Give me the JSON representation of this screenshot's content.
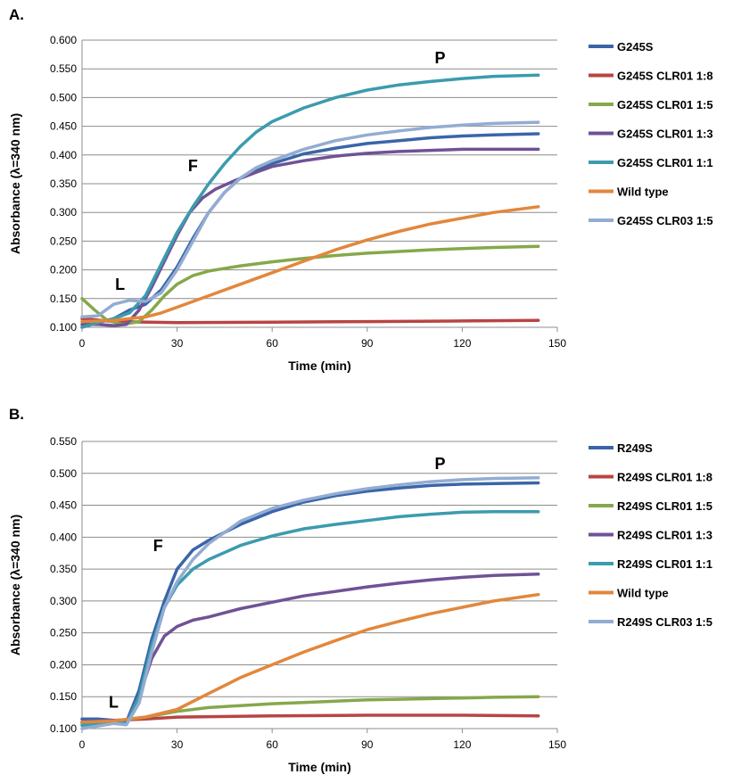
{
  "chart_data": [
    {
      "type": "line",
      "panel_label": "A.",
      "xlabel": "Time (min)",
      "ylabel": "Absorbance (λ=340 nm)",
      "xlim": [
        0,
        150
      ],
      "ylim": [
        0.1,
        0.6
      ],
      "x_ticks": [
        "0",
        "30",
        "60",
        "90",
        "120",
        "150"
      ],
      "y_ticks": [
        "0.100",
        "0.150",
        "0.200",
        "0.250",
        "0.300",
        "0.350",
        "0.400",
        "0.450",
        "0.500",
        "0.550",
        "0.600"
      ],
      "grid": true,
      "legend_position": "right",
      "annotations": [
        {
          "text": "L",
          "x": 12,
          "y": 0.165
        },
        {
          "text": "F",
          "x": 35,
          "y": 0.372
        },
        {
          "text": "P",
          "x": 113,
          "y": 0.56
        }
      ],
      "series": [
        {
          "name": "G245S",
          "color": "#3a65a8",
          "points": [
            [
              0,
              0.1
            ],
            [
              5,
              0.108
            ],
            [
              10,
              0.115
            ],
            [
              15,
              0.13
            ],
            [
              20,
              0.14
            ],
            [
              25,
              0.165
            ],
            [
              30,
              0.205
            ],
            [
              35,
              0.255
            ],
            [
              40,
              0.3
            ],
            [
              45,
              0.335
            ],
            [
              50,
              0.36
            ],
            [
              55,
              0.375
            ],
            [
              60,
              0.385
            ],
            [
              70,
              0.402
            ],
            [
              80,
              0.412
            ],
            [
              90,
              0.42
            ],
            [
              100,
              0.425
            ],
            [
              110,
              0.43
            ],
            [
              120,
              0.433
            ],
            [
              130,
              0.435
            ],
            [
              144,
              0.437
            ]
          ]
        },
        {
          "name": "G245S CLR01 1:8",
          "color": "#b84543",
          "points": [
            [
              0,
              0.115
            ],
            [
              10,
              0.11
            ],
            [
              30,
              0.108
            ],
            [
              60,
              0.109
            ],
            [
              90,
              0.11
            ],
            [
              120,
              0.111
            ],
            [
              144,
              0.112
            ]
          ]
        },
        {
          "name": "G245S CLR01 1:5",
          "color": "#86a84a",
          "points": [
            [
              0,
              0.15
            ],
            [
              4,
              0.13
            ],
            [
              8,
              0.112
            ],
            [
              13,
              0.105
            ],
            [
              18,
              0.11
            ],
            [
              22,
              0.13
            ],
            [
              26,
              0.155
            ],
            [
              30,
              0.175
            ],
            [
              35,
              0.19
            ],
            [
              40,
              0.198
            ],
            [
              50,
              0.207
            ],
            [
              60,
              0.214
            ],
            [
              70,
              0.22
            ],
            [
              80,
              0.225
            ],
            [
              90,
              0.229
            ],
            [
              100,
              0.232
            ],
            [
              110,
              0.235
            ],
            [
              120,
              0.237
            ],
            [
              130,
              0.239
            ],
            [
              144,
              0.241
            ]
          ]
        },
        {
          "name": "G245S CLR01 1:3",
          "color": "#6f5296",
          "points": [
            [
              0,
              0.105
            ],
            [
              5,
              0.105
            ],
            [
              10,
              0.103
            ],
            [
              14,
              0.105
            ],
            [
              18,
              0.13
            ],
            [
              22,
              0.17
            ],
            [
              26,
              0.215
            ],
            [
              30,
              0.26
            ],
            [
              34,
              0.3
            ],
            [
              38,
              0.325
            ],
            [
              42,
              0.34
            ],
            [
              48,
              0.355
            ],
            [
              55,
              0.37
            ],
            [
              60,
              0.38
            ],
            [
              70,
              0.39
            ],
            [
              80,
              0.398
            ],
            [
              90,
              0.403
            ],
            [
              100,
              0.406
            ],
            [
              110,
              0.408
            ],
            [
              120,
              0.41
            ],
            [
              130,
              0.41
            ],
            [
              144,
              0.41
            ]
          ]
        },
        {
          "name": "G245S CLR01 1:1",
          "color": "#3c9bae",
          "points": [
            [
              0,
              0.1
            ],
            [
              5,
              0.108
            ],
            [
              10,
              0.115
            ],
            [
              15,
              0.125
            ],
            [
              20,
              0.155
            ],
            [
              25,
              0.21
            ],
            [
              30,
              0.265
            ],
            [
              35,
              0.31
            ],
            [
              40,
              0.35
            ],
            [
              45,
              0.385
            ],
            [
              50,
              0.415
            ],
            [
              55,
              0.44
            ],
            [
              60,
              0.458
            ],
            [
              70,
              0.482
            ],
            [
              80,
              0.5
            ],
            [
              90,
              0.513
            ],
            [
              100,
              0.522
            ],
            [
              110,
              0.528
            ],
            [
              120,
              0.533
            ],
            [
              130,
              0.537
            ],
            [
              144,
              0.539
            ]
          ]
        },
        {
          "name": "Wild type",
          "color": "#e2873c",
          "points": [
            [
              0,
              0.11
            ],
            [
              10,
              0.112
            ],
            [
              20,
              0.118
            ],
            [
              25,
              0.125
            ],
            [
              30,
              0.135
            ],
            [
              40,
              0.155
            ],
            [
              50,
              0.175
            ],
            [
              60,
              0.195
            ],
            [
              70,
              0.215
            ],
            [
              80,
              0.235
            ],
            [
              90,
              0.252
            ],
            [
              100,
              0.267
            ],
            [
              110,
              0.28
            ],
            [
              120,
              0.29
            ],
            [
              130,
              0.3
            ],
            [
              144,
              0.31
            ]
          ]
        },
        {
          "name": "G245S CLR03 1:5",
          "color": "#93acd2",
          "points": [
            [
              0,
              0.118
            ],
            [
              5,
              0.12
            ],
            [
              10,
              0.14
            ],
            [
              15,
              0.147
            ],
            [
              20,
              0.145
            ],
            [
              25,
              0.16
            ],
            [
              30,
              0.2
            ],
            [
              35,
              0.25
            ],
            [
              40,
              0.3
            ],
            [
              45,
              0.335
            ],
            [
              50,
              0.36
            ],
            [
              55,
              0.378
            ],
            [
              60,
              0.39
            ],
            [
              70,
              0.41
            ],
            [
              80,
              0.425
            ],
            [
              90,
              0.435
            ],
            [
              100,
              0.442
            ],
            [
              110,
              0.448
            ],
            [
              120,
              0.452
            ],
            [
              130,
              0.455
            ],
            [
              144,
              0.457
            ]
          ]
        }
      ]
    },
    {
      "type": "line",
      "panel_label": "B.",
      "xlabel": "Time (min)",
      "ylabel": "Absorbance (λ=340 nm)",
      "xlim": [
        0,
        150
      ],
      "ylim": [
        0.1,
        0.55
      ],
      "x_ticks": [
        "0",
        "30",
        "60",
        "90",
        "120",
        "150"
      ],
      "y_ticks": [
        "0.100",
        "0.150",
        "0.200",
        "0.250",
        "0.300",
        "0.350",
        "0.400",
        "0.450",
        "0.500",
        "0.550"
      ],
      "grid": true,
      "legend_position": "right",
      "annotations": [
        {
          "text": "L",
          "x": 10,
          "y": 0.133
        },
        {
          "text": "F",
          "x": 24,
          "y": 0.378
        },
        {
          "text": "P",
          "x": 113,
          "y": 0.507
        }
      ],
      "series": [
        {
          "name": "R249S",
          "color": "#3a65a8",
          "points": [
            [
              0,
              0.115
            ],
            [
              5,
              0.115
            ],
            [
              10,
              0.113
            ],
            [
              14,
              0.11
            ],
            [
              18,
              0.16
            ],
            [
              22,
              0.24
            ],
            [
              26,
              0.3
            ],
            [
              30,
              0.35
            ],
            [
              35,
              0.38
            ],
            [
              40,
              0.395
            ],
            [
              50,
              0.42
            ],
            [
              60,
              0.44
            ],
            [
              70,
              0.455
            ],
            [
              80,
              0.465
            ],
            [
              90,
              0.472
            ],
            [
              100,
              0.477
            ],
            [
              110,
              0.481
            ],
            [
              120,
              0.483
            ],
            [
              130,
              0.484
            ],
            [
              144,
              0.485
            ]
          ]
        },
        {
          "name": "R249S CLR01 1:8",
          "color": "#b84543",
          "points": [
            [
              0,
              0.11
            ],
            [
              10,
              0.113
            ],
            [
              20,
              0.115
            ],
            [
              30,
              0.118
            ],
            [
              60,
              0.12
            ],
            [
              90,
              0.121
            ],
            [
              120,
              0.121
            ],
            [
              144,
              0.12
            ]
          ]
        },
        {
          "name": "R249S CLR01 1:5",
          "color": "#86a84a",
          "points": [
            [
              0,
              0.108
            ],
            [
              10,
              0.112
            ],
            [
              20,
              0.118
            ],
            [
              30,
              0.127
            ],
            [
              40,
              0.133
            ],
            [
              50,
              0.136
            ],
            [
              60,
              0.139
            ],
            [
              70,
              0.141
            ],
            [
              80,
              0.143
            ],
            [
              90,
              0.145
            ],
            [
              100,
              0.146
            ],
            [
              110,
              0.147
            ],
            [
              120,
              0.148
            ],
            [
              130,
              0.149
            ],
            [
              144,
              0.15
            ]
          ]
        },
        {
          "name": "R249S CLR01 1:3",
          "color": "#6f5296",
          "points": [
            [
              0,
              0.11
            ],
            [
              5,
              0.112
            ],
            [
              10,
              0.113
            ],
            [
              14,
              0.11
            ],
            [
              18,
              0.15
            ],
            [
              22,
              0.21
            ],
            [
              26,
              0.245
            ],
            [
              30,
              0.26
            ],
            [
              35,
              0.27
            ],
            [
              40,
              0.275
            ],
            [
              50,
              0.288
            ],
            [
              60,
              0.298
            ],
            [
              70,
              0.308
            ],
            [
              80,
              0.315
            ],
            [
              90,
              0.322
            ],
            [
              100,
              0.328
            ],
            [
              110,
              0.333
            ],
            [
              120,
              0.337
            ],
            [
              130,
              0.34
            ],
            [
              144,
              0.342
            ]
          ]
        },
        {
          "name": "R249S CLR01 1:1",
          "color": "#3c9bae",
          "points": [
            [
              0,
              0.105
            ],
            [
              5,
              0.108
            ],
            [
              10,
              0.11
            ],
            [
              14,
              0.108
            ],
            [
              18,
              0.15
            ],
            [
              22,
              0.23
            ],
            [
              26,
              0.29
            ],
            [
              30,
              0.325
            ],
            [
              35,
              0.35
            ],
            [
              40,
              0.365
            ],
            [
              50,
              0.387
            ],
            [
              60,
              0.402
            ],
            [
              70,
              0.413
            ],
            [
              80,
              0.42
            ],
            [
              90,
              0.426
            ],
            [
              100,
              0.432
            ],
            [
              110,
              0.436
            ],
            [
              120,
              0.439
            ],
            [
              130,
              0.44
            ],
            [
              144,
              0.44
            ]
          ]
        },
        {
          "name": "Wild type",
          "color": "#e2873c",
          "points": [
            [
              0,
              0.11
            ],
            [
              10,
              0.112
            ],
            [
              20,
              0.118
            ],
            [
              30,
              0.13
            ],
            [
              40,
              0.155
            ],
            [
              50,
              0.18
            ],
            [
              60,
              0.2
            ],
            [
              70,
              0.22
            ],
            [
              80,
              0.238
            ],
            [
              90,
              0.255
            ],
            [
              100,
              0.268
            ],
            [
              110,
              0.28
            ],
            [
              120,
              0.29
            ],
            [
              130,
              0.3
            ],
            [
              144,
              0.31
            ]
          ]
        },
        {
          "name": "R249S CLR03 1:5",
          "color": "#93acd2",
          "points": [
            [
              0,
              0.1
            ],
            [
              5,
              0.104
            ],
            [
              10,
              0.108
            ],
            [
              14,
              0.106
            ],
            [
              18,
              0.14
            ],
            [
              22,
              0.22
            ],
            [
              26,
              0.29
            ],
            [
              30,
              0.33
            ],
            [
              35,
              0.365
            ],
            [
              40,
              0.39
            ],
            [
              50,
              0.425
            ],
            [
              60,
              0.445
            ],
            [
              70,
              0.458
            ],
            [
              80,
              0.468
            ],
            [
              90,
              0.476
            ],
            [
              100,
              0.482
            ],
            [
              110,
              0.487
            ],
            [
              120,
              0.49
            ],
            [
              130,
              0.492
            ],
            [
              144,
              0.493
            ]
          ]
        }
      ]
    }
  ]
}
